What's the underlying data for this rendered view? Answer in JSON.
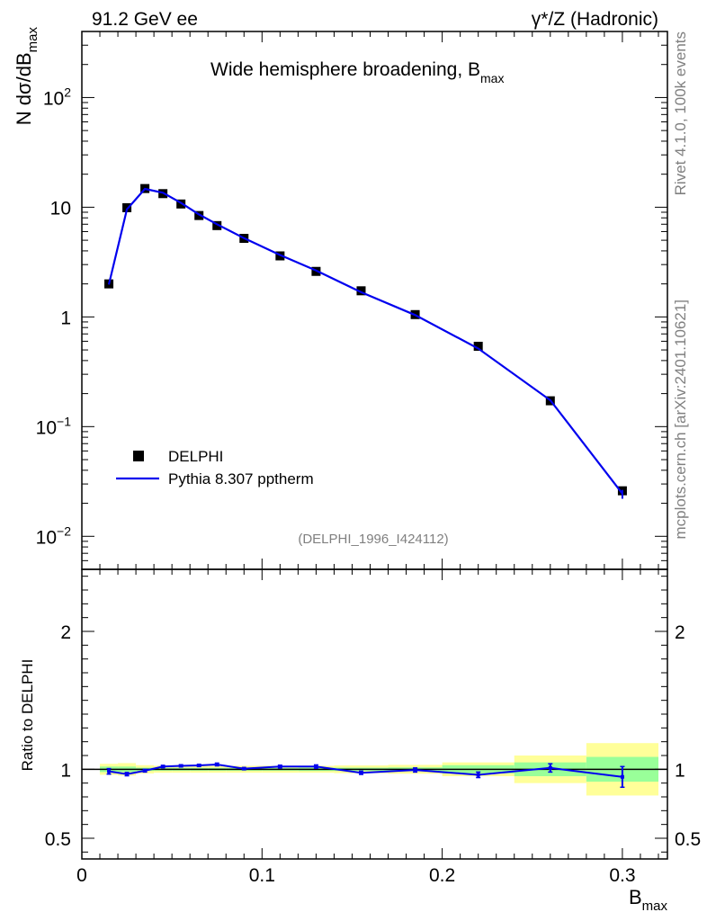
{
  "header": {
    "left": "91.2 GeV ee",
    "right": "γ*/Z (Hadronic)"
  },
  "side_labels": {
    "rivet": "Rivet 4.1.0,  100k events",
    "mcplots": "mcplots.cern.ch [arXiv:2401.10621]"
  },
  "colors": {
    "mc": "#0000ee",
    "data": "#000000",
    "band_inner": "#99ff99",
    "band_outer": "#ffff99"
  },
  "chart_data": [
    {
      "type": "line",
      "panel": "main",
      "title": "Wide hemisphere broadening, B",
      "title_sub": "max",
      "ylabel_parts": {
        "pre": "N  dσ/dB",
        "sub": "max"
      },
      "yscale": "log",
      "ylim": [
        0.005,
        400
      ],
      "xlim": [
        0,
        0.325
      ],
      "y_ticks": [
        {
          "value": 100,
          "base": "10",
          "exp": "2"
        },
        {
          "value": 10,
          "base": "10",
          "exp": ""
        },
        {
          "value": 1,
          "base": "1",
          "exp": ""
        },
        {
          "value": 0.1,
          "base": "10",
          "exp": "−1"
        },
        {
          "value": 0.01,
          "base": "10",
          "exp": "−2"
        }
      ],
      "watermark": "(DELPHI_1996_I424112)",
      "legend": [
        {
          "label": "DELPHI",
          "marker": "square"
        },
        {
          "label": "Pythia 8.307 pptherm",
          "marker": "line"
        }
      ],
      "series": [
        {
          "name": "DELPHI",
          "x": [
            0.015,
            0.025,
            0.035,
            0.045,
            0.055,
            0.065,
            0.075,
            0.09,
            0.11,
            0.13,
            0.155,
            0.185,
            0.22,
            0.26,
            0.3
          ],
          "y": [
            2.0,
            9.9,
            14.8,
            13.3,
            10.7,
            8.4,
            6.8,
            5.2,
            3.6,
            2.6,
            1.73,
            1.05,
            0.54,
            0.172,
            0.026
          ]
        },
        {
          "name": "Pythia 8.307 pptherm",
          "x": [
            0.015,
            0.025,
            0.035,
            0.045,
            0.055,
            0.065,
            0.075,
            0.09,
            0.11,
            0.13,
            0.155,
            0.185,
            0.22,
            0.26,
            0.3
          ],
          "y": [
            1.97,
            9.55,
            14.7,
            13.55,
            10.95,
            8.6,
            7.0,
            5.22,
            3.67,
            2.65,
            1.68,
            1.04,
            0.515,
            0.174,
            0.0245
          ],
          "yerr_low": [
            0,
            0,
            0,
            0,
            0,
            0,
            0,
            0,
            0,
            0,
            0,
            0,
            0,
            0,
            0.0025
          ],
          "yerr_high": [
            0,
            0,
            0,
            0,
            0,
            0,
            0,
            0,
            0,
            0,
            0,
            0,
            0,
            0,
            0.002
          ]
        }
      ]
    },
    {
      "type": "line",
      "panel": "ratio",
      "ylabel": "Ratio to DELPHI",
      "xlabel_parts": {
        "pre": "B",
        "sub": "max"
      },
      "ylim": [
        0.35,
        2.45
      ],
      "xlim": [
        0,
        0.325
      ],
      "y_ticks": [
        {
          "value": 2,
          "label": "2"
        },
        {
          "value": 1,
          "label": "1"
        },
        {
          "value": 0.5,
          "label": "0.5"
        }
      ],
      "x_ticks": [
        {
          "value": 0,
          "label": "0"
        },
        {
          "value": 0.1,
          "label": "0.1"
        },
        {
          "value": 0.2,
          "label": "0.2"
        },
        {
          "value": 0.3,
          "label": "0.3"
        }
      ],
      "uncertainty_bands": [
        {
          "x0": 0.01,
          "x1": 0.02,
          "inner": 0.02,
          "outer": 0.04
        },
        {
          "x0": 0.02,
          "x1": 0.03,
          "inner": 0.02,
          "outer": 0.045
        },
        {
          "x0": 0.03,
          "x1": 0.04,
          "inner": 0.012,
          "outer": 0.03
        },
        {
          "x0": 0.04,
          "x1": 0.05,
          "inner": 0.01,
          "outer": 0.025
        },
        {
          "x0": 0.05,
          "x1": 0.06,
          "inner": 0.01,
          "outer": 0.025
        },
        {
          "x0": 0.06,
          "x1": 0.07,
          "inner": 0.01,
          "outer": 0.025
        },
        {
          "x0": 0.07,
          "x1": 0.08,
          "inner": 0.01,
          "outer": 0.025
        },
        {
          "x0": 0.08,
          "x1": 0.1,
          "inner": 0.01,
          "outer": 0.025
        },
        {
          "x0": 0.1,
          "x1": 0.12,
          "inner": 0.01,
          "outer": 0.025
        },
        {
          "x0": 0.12,
          "x1": 0.14,
          "inner": 0.012,
          "outer": 0.025
        },
        {
          "x0": 0.14,
          "x1": 0.17,
          "inner": 0.012,
          "outer": 0.028
        },
        {
          "x0": 0.17,
          "x1": 0.2,
          "inner": 0.014,
          "outer": 0.032
        },
        {
          "x0": 0.2,
          "x1": 0.24,
          "inner": 0.03,
          "outer": 0.05
        },
        {
          "x0": 0.24,
          "x1": 0.28,
          "inner": 0.05,
          "outer": 0.1
        },
        {
          "x0": 0.28,
          "x1": 0.32,
          "inner": 0.09,
          "outer": 0.19
        }
      ],
      "series": [
        {
          "name": "Pythia 8.307 pptherm / DELPHI",
          "x": [
            0.015,
            0.025,
            0.035,
            0.045,
            0.055,
            0.065,
            0.075,
            0.09,
            0.11,
            0.13,
            0.155,
            0.185,
            0.22,
            0.26,
            0.3
          ],
          "y": [
            0.985,
            0.965,
            0.99,
            1.02,
            1.025,
            1.028,
            1.035,
            1.005,
            1.02,
            1.02,
            0.975,
            0.995,
            0.96,
            1.01,
            0.945
          ],
          "yerr": [
            0.02,
            0.012,
            0.01,
            0.008,
            0.008,
            0.008,
            0.01,
            0.008,
            0.01,
            0.012,
            0.012,
            0.015,
            0.02,
            0.03,
            0.075
          ]
        }
      ]
    }
  ]
}
